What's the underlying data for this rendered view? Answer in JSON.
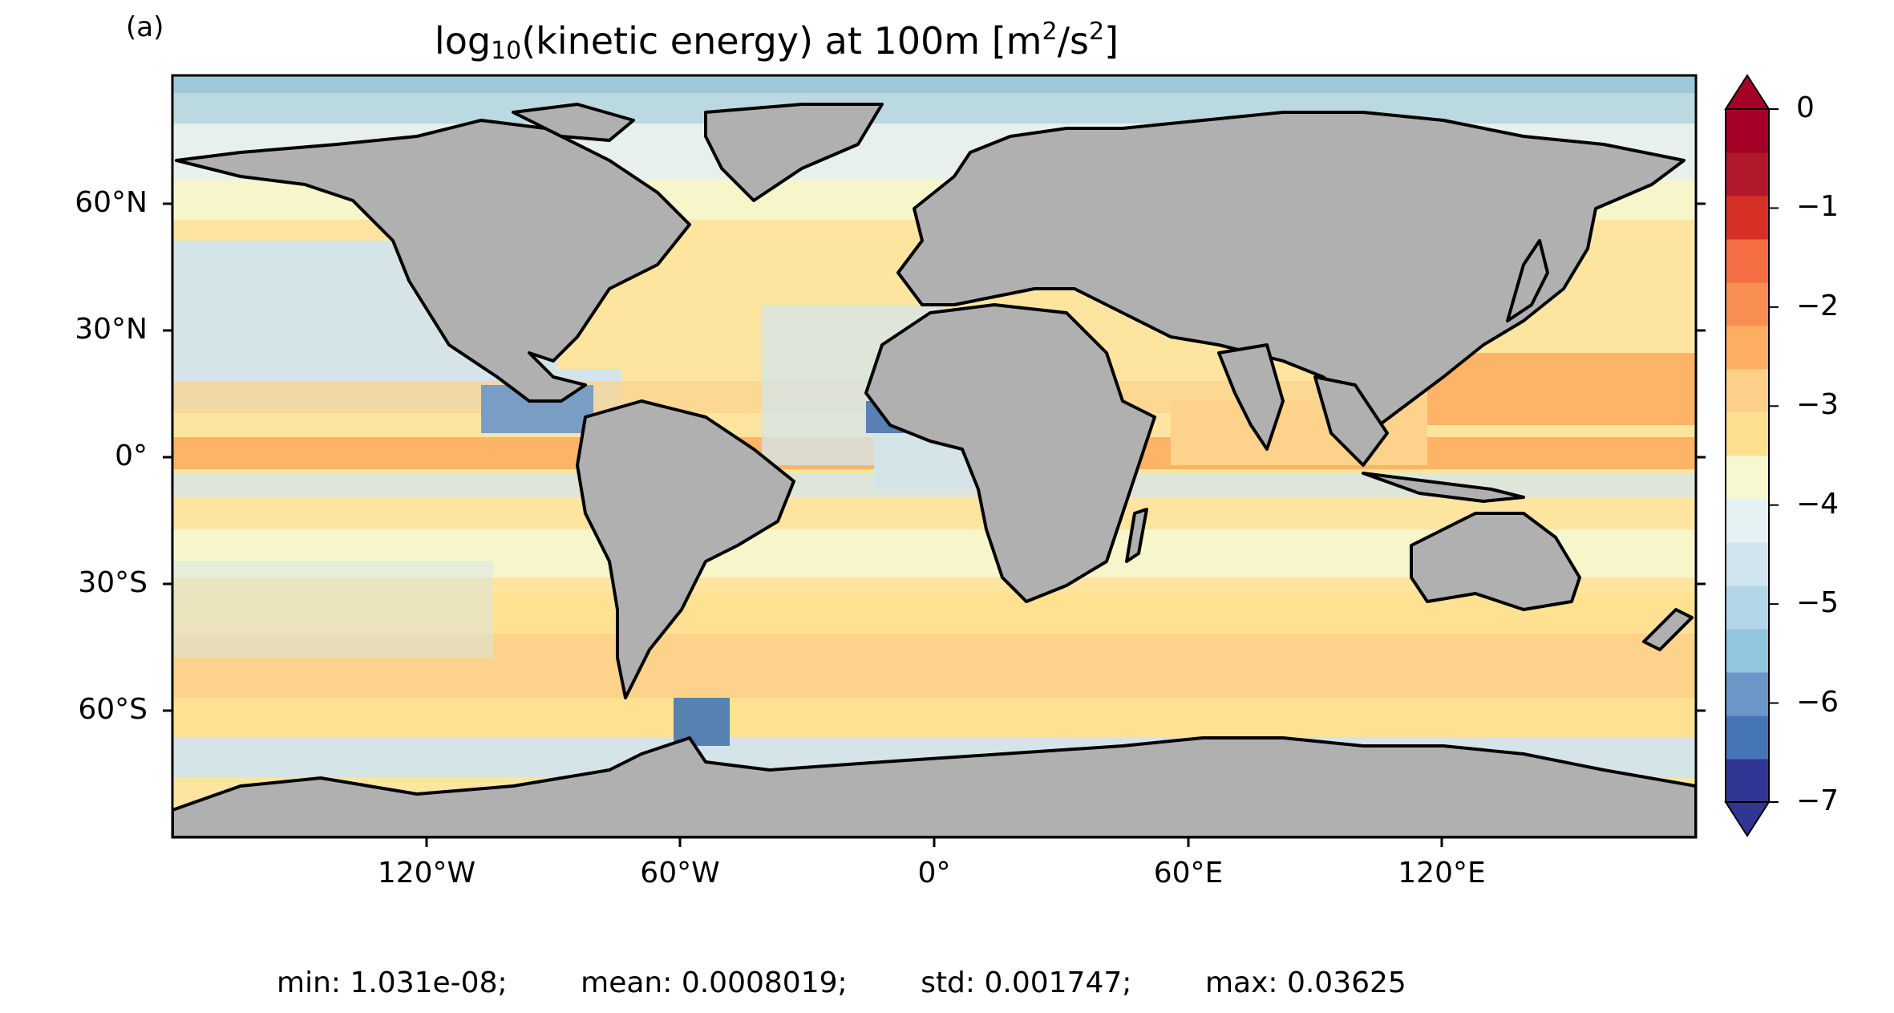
{
  "panel_label": "(a)",
  "title": {
    "pre": "log",
    "sub": "10",
    "mid": "(kinetic energy) at 100m [m",
    "sup1": "2",
    "slash": "/s",
    "sup2": "2",
    "post": "]"
  },
  "lat_labels": [
    "60°N",
    "30°N",
    "0°",
    "30°S",
    "60°S"
  ],
  "lon_labels": [
    "120°W",
    "60°W",
    "0°",
    "60°E",
    "120°E"
  ],
  "colorbar": {
    "ticks": [
      "0",
      "−1",
      "−2",
      "−3",
      "−4",
      "−5",
      "−6",
      "−7"
    ],
    "range": [
      -7,
      0
    ],
    "colors": [
      "#313695",
      "#4575b4",
      "#6b96c8",
      "#92c5de",
      "#b3d7e8",
      "#d1e5f0",
      "#e6f1f4",
      "#f7f7d0",
      "#fee090",
      "#fdd08a",
      "#fdae61",
      "#f98e52",
      "#f46d43",
      "#d73027",
      "#b2182b",
      "#a50026"
    ],
    "extend": "both"
  },
  "stats": {
    "min": "min: 1.031e-08;",
    "mean": "mean: 0.0008019;",
    "std": "std: 0.001747;",
    "max": "max: 0.03625"
  },
  "colors": {
    "land": "#b0b0b0",
    "ocean_base": "#fde5a0",
    "coast": "#000000"
  }
}
